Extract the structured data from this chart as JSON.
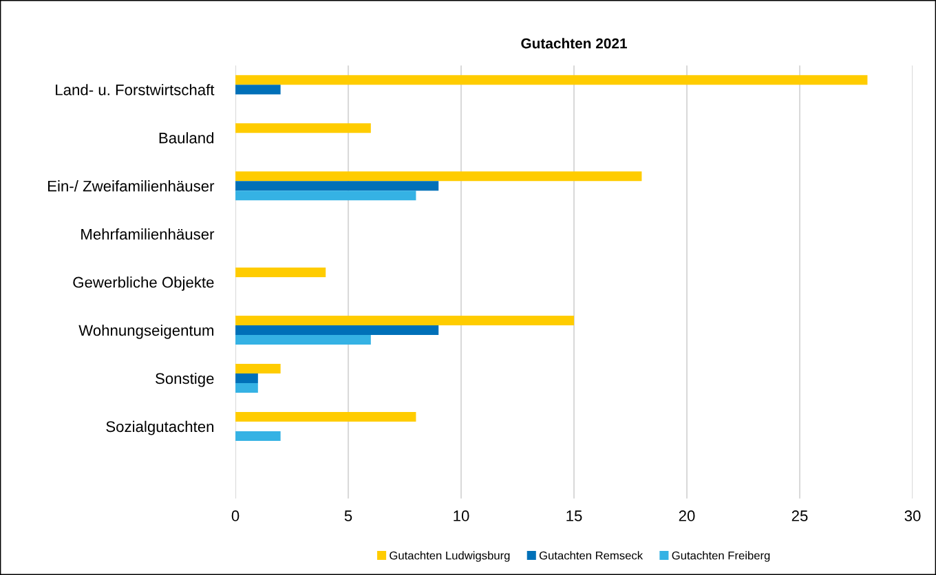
{
  "chart_data": {
    "type": "bar",
    "orientation": "horizontal",
    "title": "Gutachten 2021",
    "categories": [
      "Land- u. Forstwirtschaft",
      "Bauland",
      "Ein-/ Zweifamilienhäuser",
      "Mehrfamilienhäuser",
      "Gewerbliche Objekte",
      "Wohnungseigentum",
      "Sonstige",
      "Sozialgutachten",
      null
    ],
    "series": [
      {
        "name": "Gutachten Ludwigsburg",
        "color": "#ffcc00",
        "values": [
          28,
          6,
          18,
          null,
          4,
          15,
          2,
          8,
          null
        ]
      },
      {
        "name": "Gutachten Remseck",
        "color": "#0070b8",
        "values": [
          2,
          null,
          9,
          null,
          null,
          9,
          1,
          null,
          null
        ]
      },
      {
        "name": "Gutachten Freiberg",
        "color": "#35b2e4",
        "values": [
          null,
          null,
          8,
          null,
          null,
          6,
          1,
          2,
          null
        ]
      }
    ],
    "xlim": [
      0,
      30
    ],
    "xticks": [
      0,
      5,
      10,
      15,
      20,
      25,
      30
    ],
    "grid": "x",
    "legend": "bottom"
  }
}
